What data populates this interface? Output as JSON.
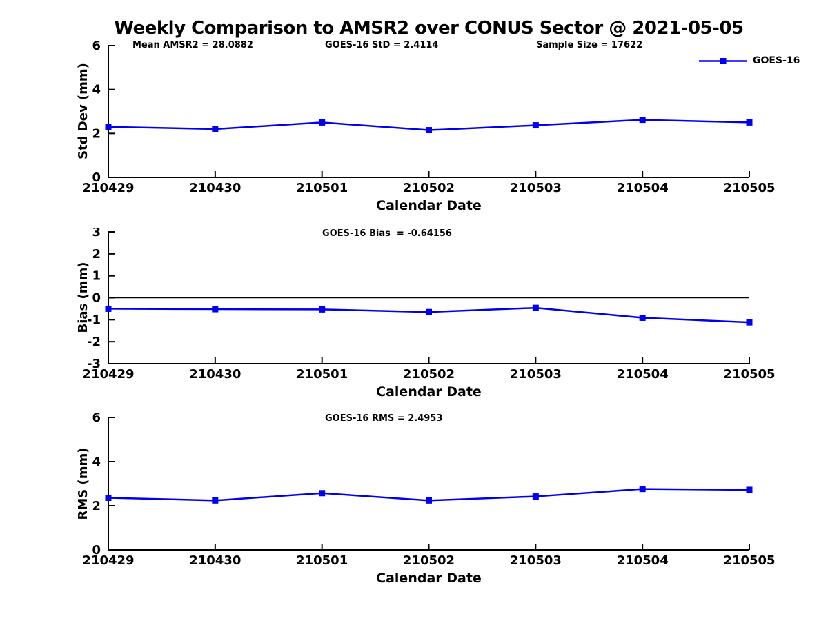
{
  "figure_title": "Weekly Comparison to AMSR2 over CONUS Sector @ 2021-05-05",
  "legend": {
    "label": "GOES-16",
    "marker": "square",
    "position": "top-right-outside"
  },
  "colors": {
    "line": "#0000ee",
    "marker": "#0000ee",
    "axis": "#000000",
    "zero_line": "#000000",
    "background": "#ffffff",
    "text": "#000000"
  },
  "chart_data": [
    {
      "type": "line",
      "panel": "std-dev",
      "annotations": [
        "Mean AMSR2 = 28.0882",
        "GOES-16 StD = 2.4114",
        "Sample Size = 17622"
      ],
      "categories": [
        "210429",
        "210430",
        "210501",
        "210502",
        "210503",
        "210504",
        "210505"
      ],
      "series": [
        {
          "name": "GOES-16",
          "values": [
            2.3,
            2.2,
            2.5,
            2.15,
            2.37,
            2.62,
            2.5
          ]
        }
      ],
      "xlabel": "Calendar Date",
      "ylabel": "Std Dev (mm)",
      "ylim": [
        0,
        6
      ],
      "yticks": [
        0,
        2,
        4,
        6
      ],
      "zero_line": false,
      "grid": false,
      "legend_entries": [
        "GOES-16"
      ]
    },
    {
      "type": "line",
      "panel": "bias",
      "annotations": [
        "GOES-16 Bias  = -0.64156"
      ],
      "categories": [
        "210429",
        "210430",
        "210501",
        "210502",
        "210503",
        "210504",
        "210505"
      ],
      "series": [
        {
          "name": "GOES-16",
          "values": [
            -0.5,
            -0.52,
            -0.53,
            -0.65,
            -0.46,
            -0.91,
            -1.12
          ]
        }
      ],
      "xlabel": "Calendar Date",
      "ylabel": "Bias (mm)",
      "ylim": [
        -3,
        3
      ],
      "yticks": [
        -3,
        -2,
        -1,
        0,
        1,
        2,
        3
      ],
      "zero_line": true,
      "grid": false,
      "legend_entries": [
        "GOES-16"
      ]
    },
    {
      "type": "line",
      "panel": "rms",
      "annotations": [
        "GOES-16 RMS = 2.4953"
      ],
      "categories": [
        "210429",
        "210430",
        "210501",
        "210502",
        "210503",
        "210504",
        "210505"
      ],
      "series": [
        {
          "name": "GOES-16",
          "values": [
            2.36,
            2.24,
            2.57,
            2.24,
            2.42,
            2.76,
            2.72
          ]
        }
      ],
      "xlabel": "Calendar Date",
      "ylabel": "RMS (mm)",
      "ylim": [
        0,
        6
      ],
      "yticks": [
        0,
        2,
        4,
        6
      ],
      "zero_line": false,
      "grid": false,
      "legend_entries": [
        "GOES-16"
      ]
    }
  ]
}
